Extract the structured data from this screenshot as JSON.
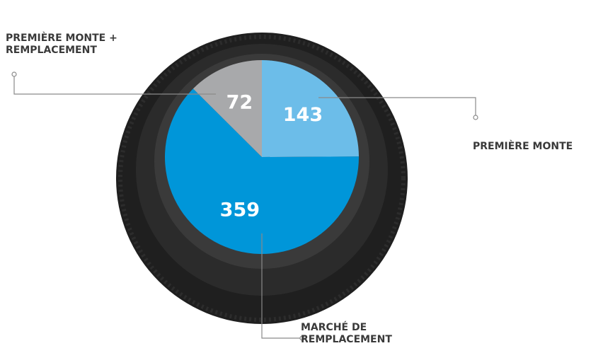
{
  "chart_data": {
    "type": "pie",
    "categories": [
      "PREMIÈRE MONTE",
      "MARCHÉ DE REMPLACEMENT",
      "PREMIÈRE MONTE + REMPLACEMENT"
    ],
    "values": [
      143,
      359,
      72
    ],
    "colors": [
      "#6cbde9",
      "#0096d9",
      "#a8a9ab"
    ]
  }
}
